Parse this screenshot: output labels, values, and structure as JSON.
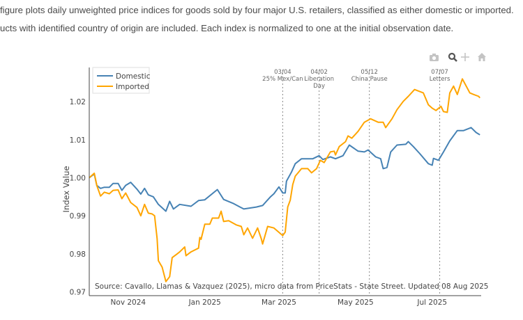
{
  "intro": {
    "line1": "figure plots daily unweighted price indices for goods sold by four major U.S. retailers, classified as either domestic or imported.",
    "line2": "ucts with identified country of origin are included. Each index is normalized to one at the initial observation date."
  },
  "modebar": {
    "icons": [
      "camera-icon",
      "zoom-icon",
      "pan-icon",
      "home-icon"
    ]
  },
  "chart_data": {
    "type": "line",
    "title": "",
    "xlabel": "",
    "ylabel": "Index Value",
    "xlim": [
      "2024-10-01",
      "2025-08-09"
    ],
    "ylim": [
      0.969,
      1.029
    ],
    "grid": false,
    "legend_position": "top-left",
    "x_ticks": [
      {
        "date": "2024-11-01",
        "label": "Nov 2024"
      },
      {
        "date": "2025-01-01",
        "label": "Jan 2025"
      },
      {
        "date": "2025-03-01",
        "label": "Mar 2025"
      },
      {
        "date": "2025-05-01",
        "label": "May 2025"
      },
      {
        "date": "2025-07-01",
        "label": "Jul 2025"
      }
    ],
    "y_ticks": [
      "0.97",
      "0.98",
      "0.99",
      "1.00",
      "1.01",
      "1.02"
    ],
    "events": [
      {
        "date": "2025-03-04",
        "lines": [
          "03/04",
          "25% Mex/Can"
        ]
      },
      {
        "date": "2025-04-02",
        "lines": [
          "04/02",
          "Liberation",
          "Day"
        ]
      },
      {
        "date": "2025-05-12",
        "lines": [
          "05/12",
          "China Pause"
        ]
      },
      {
        "date": "2025-07-07",
        "lines": [
          "07/07",
          "Letters"
        ]
      }
    ],
    "annotation": "Source: Cavallo, Llamas & Vazquez (2025), micro data from PriceStats - State Street. Updated 08 Aug 2025",
    "series": [
      {
        "name": "Domestic",
        "color": "#4682B4",
        "points": [
          [
            "2024-10-01",
            1.0
          ],
          [
            "2024-10-05",
            1.001
          ],
          [
            "2024-10-07",
            0.998
          ],
          [
            "2024-10-10",
            0.9972
          ],
          [
            "2024-10-13",
            0.9975
          ],
          [
            "2024-10-17",
            0.9975
          ],
          [
            "2024-10-20",
            0.9985
          ],
          [
            "2024-10-24",
            0.9985
          ],
          [
            "2024-10-27",
            0.9967
          ],
          [
            "2024-10-30",
            0.998
          ],
          [
            "2024-11-03",
            0.9988
          ],
          [
            "2024-11-08",
            0.997
          ],
          [
            "2024-11-11",
            0.9957
          ],
          [
            "2024-11-14",
            0.9972
          ],
          [
            "2024-11-17",
            0.9955
          ],
          [
            "2024-11-21",
            0.995
          ],
          [
            "2024-11-25",
            0.993
          ],
          [
            "2024-12-01",
            0.9912
          ],
          [
            "2024-12-04",
            0.9938
          ],
          [
            "2024-12-07",
            0.9918
          ],
          [
            "2024-12-12",
            0.993
          ],
          [
            "2024-12-21",
            0.9925
          ],
          [
            "2024-12-27",
            0.994
          ],
          [
            "2025-01-01",
            0.9942
          ],
          [
            "2025-01-11",
            0.9969
          ],
          [
            "2025-01-16",
            0.9943
          ],
          [
            "2025-01-24",
            0.9932
          ],
          [
            "2025-01-29",
            0.9923
          ],
          [
            "2025-02-01",
            0.9918
          ],
          [
            "2025-02-11",
            0.9923
          ],
          [
            "2025-02-16",
            0.9927
          ],
          [
            "2025-02-22",
            0.9949
          ],
          [
            "2025-02-25",
            0.9958
          ],
          [
            "2025-03-01",
            0.9976
          ],
          [
            "2025-03-04",
            0.996
          ],
          [
            "2025-03-06",
            0.996
          ],
          [
            "2025-03-07",
            0.9991
          ],
          [
            "2025-03-11",
            1.0015
          ],
          [
            "2025-03-14",
            1.0037
          ],
          [
            "2025-03-19",
            1.005
          ],
          [
            "2025-03-28",
            1.005
          ],
          [
            "2025-04-02",
            1.0058
          ],
          [
            "2025-04-05",
            1.0048
          ],
          [
            "2025-04-11",
            1.0055
          ],
          [
            "2025-04-15",
            1.005
          ],
          [
            "2025-04-21",
            1.0058
          ],
          [
            "2025-04-26",
            1.0086
          ],
          [
            "2025-05-03",
            1.007
          ],
          [
            "2025-05-08",
            1.0068
          ],
          [
            "2025-05-11",
            1.0073
          ],
          [
            "2025-05-17",
            1.0055
          ],
          [
            "2025-05-21",
            1.005
          ],
          [
            "2025-05-23",
            1.0024
          ],
          [
            "2025-05-26",
            1.0027
          ],
          [
            "2025-05-29",
            1.0068
          ],
          [
            "2025-06-03",
            1.0086
          ],
          [
            "2025-06-10",
            1.0088
          ],
          [
            "2025-06-12",
            1.0095
          ],
          [
            "2025-06-16",
            1.0082
          ],
          [
            "2025-06-21",
            1.0064
          ],
          [
            "2025-06-28",
            1.0037
          ],
          [
            "2025-07-01",
            1.0033
          ],
          [
            "2025-07-02",
            1.0051
          ],
          [
            "2025-07-06",
            1.0046
          ],
          [
            "2025-07-10",
            1.0068
          ],
          [
            "2025-07-15",
            1.0097
          ],
          [
            "2025-07-21",
            1.0124
          ],
          [
            "2025-07-26",
            1.0124
          ],
          [
            "2025-08-01",
            1.0132
          ],
          [
            "2025-08-05",
            1.0119
          ],
          [
            "2025-08-08",
            1.0113
          ]
        ]
      },
      {
        "name": "Imported",
        "color": "#FFA500",
        "points": [
          [
            "2024-10-01",
            1.0
          ],
          [
            "2024-10-05",
            1.0012
          ],
          [
            "2024-10-07",
            0.998
          ],
          [
            "2024-10-10",
            0.9952
          ],
          [
            "2024-10-13",
            0.9962
          ],
          [
            "2024-10-17",
            0.9958
          ],
          [
            "2024-10-20",
            0.9967
          ],
          [
            "2024-10-24",
            0.9968
          ],
          [
            "2024-10-27",
            0.9945
          ],
          [
            "2024-10-30",
            0.996
          ],
          [
            "2024-11-03",
            0.9935
          ],
          [
            "2024-11-08",
            0.9922
          ],
          [
            "2024-11-11",
            0.99
          ],
          [
            "2024-11-14",
            0.993
          ],
          [
            "2024-11-17",
            0.9907
          ],
          [
            "2024-11-20",
            0.9905
          ],
          [
            "2024-11-22",
            0.99
          ],
          [
            "2024-11-24",
            0.984
          ],
          [
            "2024-11-25",
            0.9782
          ],
          [
            "2024-11-28",
            0.9765
          ],
          [
            "2024-12-01",
            0.9727
          ],
          [
            "2024-12-04",
            0.974
          ],
          [
            "2024-12-06",
            0.979
          ],
          [
            "2024-12-10",
            0.98
          ],
          [
            "2024-12-12",
            0.9805
          ],
          [
            "2024-12-16",
            0.9818
          ],
          [
            "2024-12-17",
            0.9795
          ],
          [
            "2024-12-21",
            0.9805
          ],
          [
            "2024-12-24",
            0.981
          ],
          [
            "2024-12-27",
            0.9815
          ],
          [
            "2024-12-28",
            0.9843
          ],
          [
            "2024-12-29",
            0.9838
          ],
          [
            "2025-01-01",
            0.9878
          ],
          [
            "2025-01-05",
            0.9878
          ],
          [
            "2025-01-07",
            0.9894
          ],
          [
            "2025-01-12",
            0.9894
          ],
          [
            "2025-01-14",
            0.9912
          ],
          [
            "2025-01-16",
            0.9885
          ],
          [
            "2025-01-20",
            0.9887
          ],
          [
            "2025-01-26",
            0.9876
          ],
          [
            "2025-01-30",
            0.9872
          ],
          [
            "2025-02-01",
            0.985
          ],
          [
            "2025-02-04",
            0.9868
          ],
          [
            "2025-02-08",
            0.9841
          ],
          [
            "2025-02-12",
            0.9868
          ],
          [
            "2025-02-15",
            0.9839
          ],
          [
            "2025-02-16",
            0.9826
          ],
          [
            "2025-02-20",
            0.9872
          ],
          [
            "2025-02-25",
            0.9868
          ],
          [
            "2025-03-04",
            0.9848
          ],
          [
            "2025-03-06",
            0.9857
          ],
          [
            "2025-03-08",
            0.9923
          ],
          [
            "2025-03-10",
            0.9941
          ],
          [
            "2025-03-12",
            0.9982
          ],
          [
            "2025-03-14",
            1.0004
          ],
          [
            "2025-03-19",
            1.0024
          ],
          [
            "2025-03-24",
            1.0024
          ],
          [
            "2025-03-27",
            1.0013
          ],
          [
            "2025-03-31",
            1.0024
          ],
          [
            "2025-04-03",
            1.0046
          ],
          [
            "2025-04-06",
            1.004
          ],
          [
            "2025-04-11",
            1.0068
          ],
          [
            "2025-04-14",
            1.007
          ],
          [
            "2025-04-15",
            1.006
          ],
          [
            "2025-04-18",
            1.0082
          ],
          [
            "2025-04-23",
            1.0095
          ],
          [
            "2025-04-25",
            1.011
          ],
          [
            "2025-04-28",
            1.0104
          ],
          [
            "2025-05-03",
            1.0122
          ],
          [
            "2025-05-08",
            1.0146
          ],
          [
            "2025-05-13",
            1.0155
          ],
          [
            "2025-05-19",
            1.0146
          ],
          [
            "2025-05-23",
            1.0146
          ],
          [
            "2025-05-25",
            1.0132
          ],
          [
            "2025-05-30",
            1.0155
          ],
          [
            "2025-06-03",
            1.0179
          ],
          [
            "2025-06-08",
            1.0201
          ],
          [
            "2025-06-12",
            1.0214
          ],
          [
            "2025-06-17",
            1.0232
          ],
          [
            "2025-06-24",
            1.0223
          ],
          [
            "2025-06-28",
            1.0192
          ],
          [
            "2025-07-01",
            1.0183
          ],
          [
            "2025-07-04",
            1.0177
          ],
          [
            "2025-07-08",
            1.0188
          ],
          [
            "2025-07-10",
            1.0174
          ],
          [
            "2025-07-13",
            1.0172
          ],
          [
            "2025-07-15",
            1.0223
          ],
          [
            "2025-07-18",
            1.0241
          ],
          [
            "2025-07-21",
            1.0219
          ],
          [
            "2025-07-25",
            1.026
          ],
          [
            "2025-07-31",
            1.0223
          ],
          [
            "2025-08-03",
            1.0219
          ],
          [
            "2025-08-07",
            1.0214
          ],
          [
            "2025-08-08",
            1.021
          ]
        ]
      }
    ]
  }
}
